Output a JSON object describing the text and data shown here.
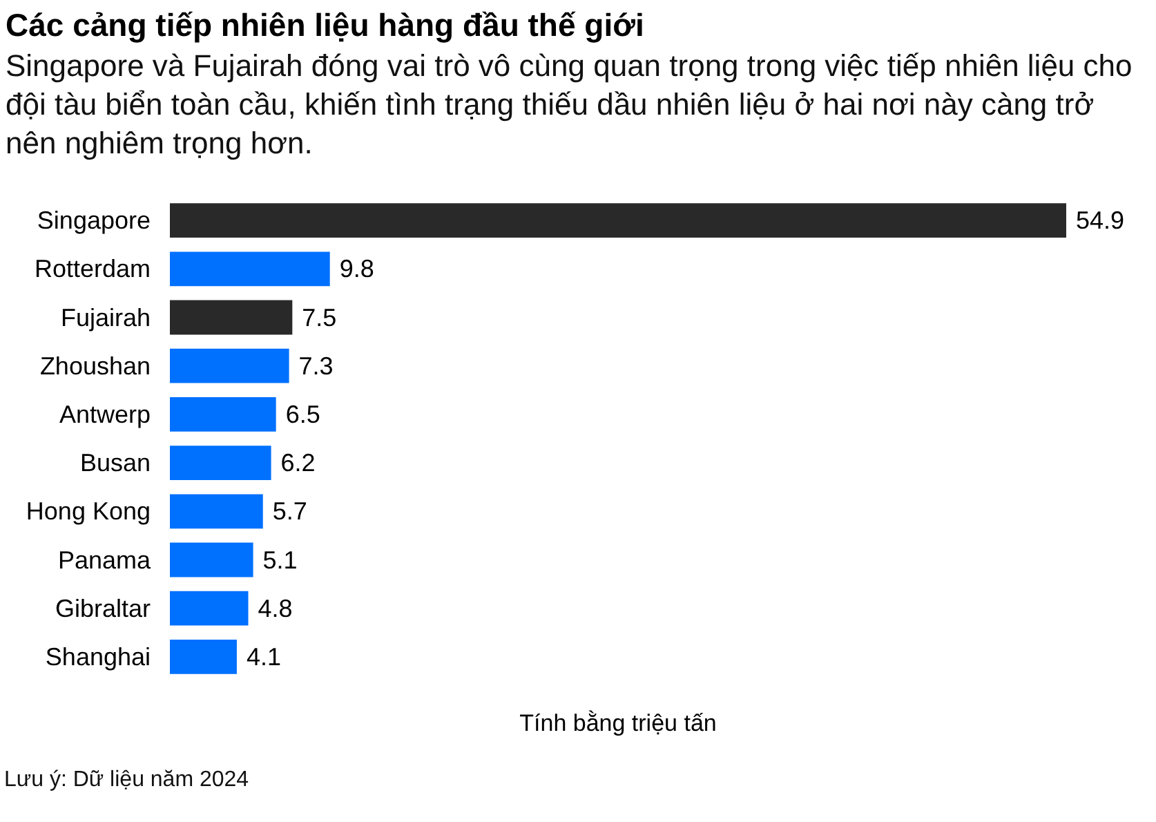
{
  "chart_data": {
    "type": "bar",
    "orientation": "horizontal",
    "title": "Các cảng tiếp nhiên liệu hàng đầu thế giới",
    "subtitle": "Singapore và Fujairah đóng vai trò vô cùng quan trọng trong việc tiếp nhiên liệu cho đội tàu biển toàn cầu, khiến tình trạng thiếu dầu nhiên liệu ở hai nơi này càng trở nên nghiêm trọng hơn.",
    "xlabel": "Tính bằng triệu tấn",
    "categories": [
      "Singapore",
      "Rotterdam",
      "Fujairah",
      "Zhoushan",
      "Antwerp",
      "Busan",
      "Hong Kong",
      "Panama",
      "Gibraltar",
      "Shanghai"
    ],
    "values": [
      54.9,
      9.8,
      7.5,
      7.3,
      6.5,
      6.2,
      5.7,
      5.1,
      4.8,
      4.1
    ],
    "colors": [
      "#292929",
      "#0070ff",
      "#292929",
      "#0070ff",
      "#0070ff",
      "#0070ff",
      "#0070ff",
      "#0070ff",
      "#0070ff",
      "#0070ff"
    ],
    "data_labels": true,
    "tick_labels": "y",
    "annotations": [
      "Lưu ý: Dữ liệu năm 2024"
    ]
  }
}
